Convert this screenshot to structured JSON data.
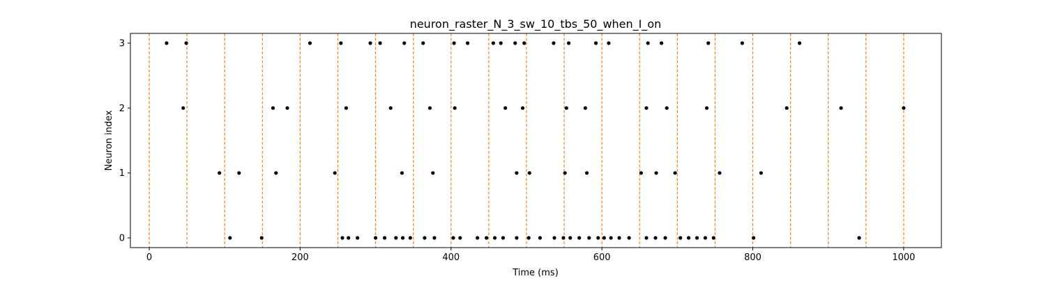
{
  "chart_data": {
    "type": "scatter",
    "title": "neuron_raster_N_3_sw_10_tbs_50_when_I_on",
    "xlabel": "Time (ms)",
    "ylabel": "Neuron index",
    "xlim": [
      -25,
      1050
    ],
    "ylim": [
      -0.15,
      3.15
    ],
    "x_ticks": [
      0,
      200,
      400,
      600,
      800,
      1000
    ],
    "y_ticks": [
      0,
      1,
      2,
      3
    ],
    "grid": false,
    "legend": "none",
    "marker_color": "#000000",
    "vline_color": "#ff7f0e",
    "vlines": [
      0,
      50,
      100,
      150,
      200,
      250,
      300,
      350,
      400,
      450,
      500,
      550,
      600,
      650,
      700,
      750,
      800,
      850,
      900,
      950,
      1000
    ],
    "series": [
      {
        "neuron": 3,
        "x": [
          23,
          49,
          213,
          254,
          293,
          306,
          338,
          363,
          404,
          422,
          456,
          466,
          485,
          497,
          536,
          556,
          592,
          609,
          661,
          679,
          741,
          786,
          862
        ]
      },
      {
        "neuron": 2,
        "x": [
          45,
          164,
          183,
          261,
          320,
          372,
          405,
          472,
          495,
          553,
          578,
          659,
          686,
          739,
          845,
          917,
          1000
        ]
      },
      {
        "neuron": 1,
        "x": [
          93,
          119,
          168,
          246,
          335,
          376,
          487,
          504,
          551,
          580,
          652,
          672,
          697,
          756,
          811
        ]
      },
      {
        "neuron": 0,
        "x": [
          107,
          149,
          256,
          264,
          276,
          300,
          312,
          327,
          336,
          346,
          365,
          378,
          403,
          412,
          435,
          447,
          458,
          469,
          487,
          503,
          518,
          537,
          549,
          558,
          570,
          583,
          595,
          603,
          612,
          623,
          636,
          659,
          671,
          684,
          704,
          715,
          726,
          737,
          748,
          801,
          941
        ]
      }
    ]
  }
}
